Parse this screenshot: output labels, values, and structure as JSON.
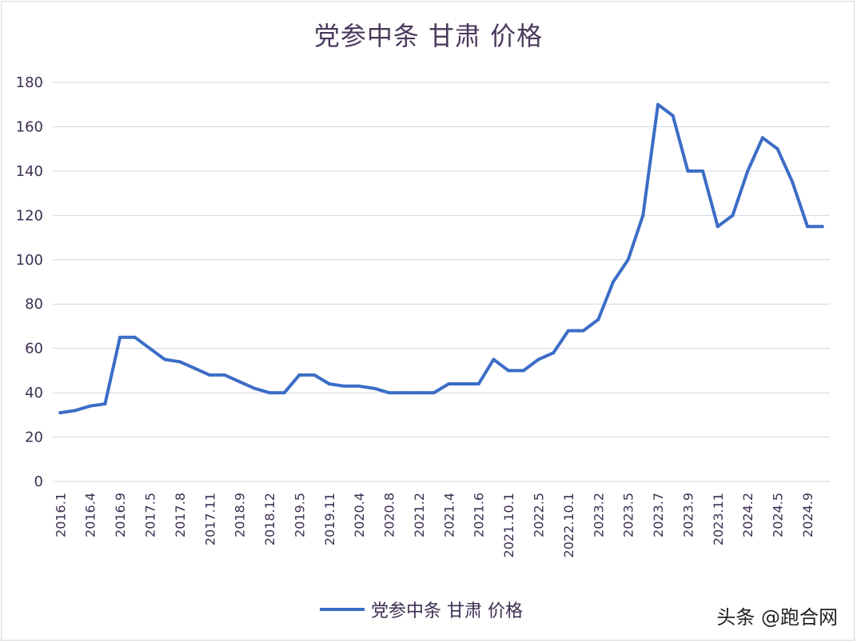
{
  "chart_data": {
    "type": "line",
    "title": "党参中条 甘肃 价格",
    "xlabel": "",
    "ylabel": "",
    "ylim": [
      0,
      180
    ],
    "yticks": [
      0,
      20,
      40,
      60,
      80,
      100,
      120,
      140,
      160,
      180
    ],
    "grid": true,
    "legend_position": "bottom",
    "color": "#3b6dc6",
    "x_tick_labels": [
      "2016.1",
      "2016.4",
      "2016.9",
      "2017.5",
      "2017.8",
      "2017.11",
      "2018.9",
      "2018.12",
      "2019.5",
      "2019.11",
      "2020.4",
      "2020.8",
      "2021.2",
      "2021.4",
      "2021.6",
      "2021.10.1",
      "2022.5",
      "2022.10.1",
      "2023.2",
      "2023.5",
      "2023.7",
      "2023.9",
      "2023.11",
      "2024.2",
      "2024.5",
      "2024.9"
    ],
    "series": [
      {
        "name": "党参中条 甘肃 价格",
        "values": [
          31,
          32,
          34,
          35,
          65,
          65,
          60,
          55,
          54,
          51,
          48,
          48,
          45,
          42,
          40,
          40,
          48,
          48,
          44,
          43,
          43,
          42,
          40,
          40,
          40,
          40,
          44,
          44,
          44,
          55,
          50,
          50,
          55,
          58,
          68,
          68,
          73,
          90,
          100,
          120,
          170,
          165,
          140,
          140,
          115,
          120,
          140,
          155,
          150,
          135,
          115,
          115
        ]
      }
    ]
  },
  "watermark": "头条 @跑合网"
}
